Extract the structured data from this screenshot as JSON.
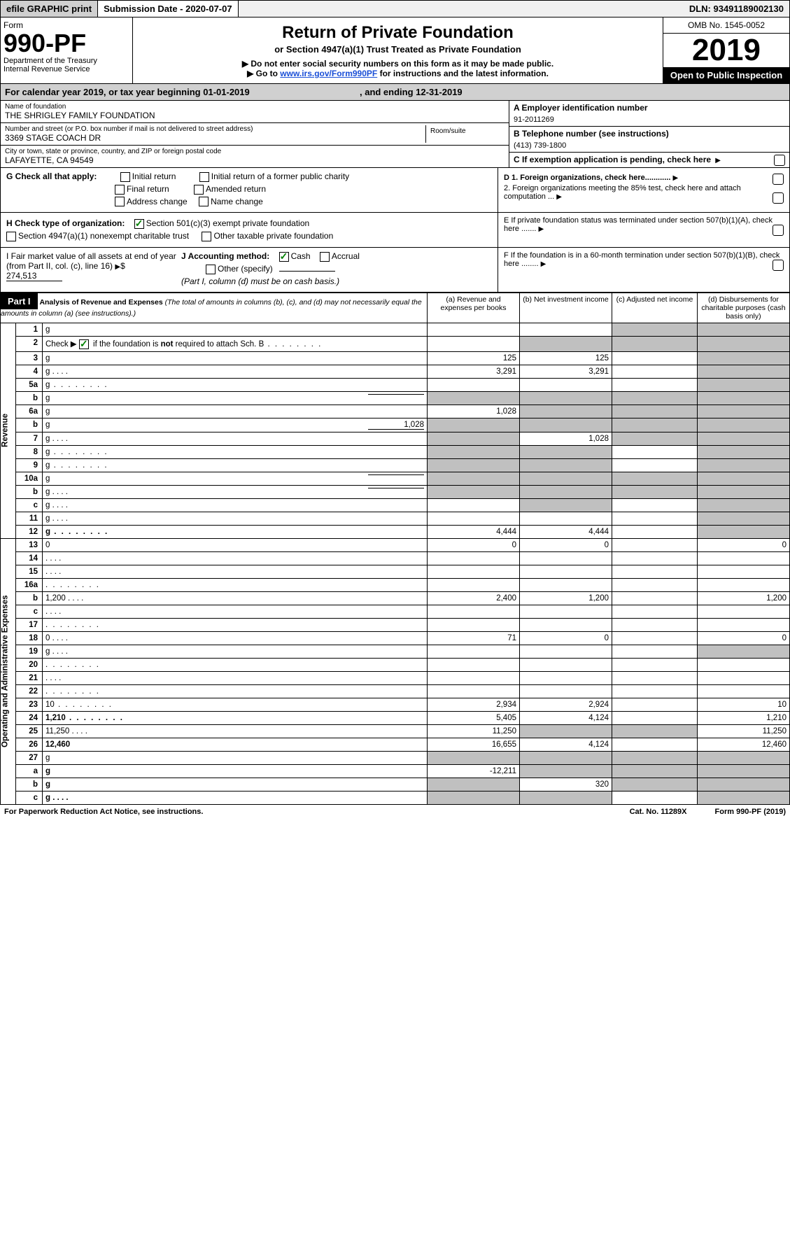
{
  "top": {
    "efile": "efile GRAPHIC print",
    "submission": "Submission Date - 2020-07-07",
    "dln": "DLN: 93491189002130"
  },
  "header": {
    "form_label": "Form",
    "form_number": "990-PF",
    "dept1": "Department of the Treasury",
    "dept2": "Internal Revenue Service",
    "title": "Return of Private Foundation",
    "subtitle": "or Section 4947(a)(1) Trust Treated as Private Foundation",
    "instr1": "▶ Do not enter social security numbers on this form as it may be made public.",
    "instr2_pre": "▶ Go to ",
    "instr2_link": "www.irs.gov/Form990PF",
    "instr2_post": " for instructions and the latest information.",
    "omb": "OMB No. 1545-0052",
    "year": "2019",
    "open": "Open to Public Inspection"
  },
  "calyear": {
    "text_pre": "For calendar year 2019, or tax year beginning ",
    "begin": "01-01-2019",
    "mid": " , and ending ",
    "end": "12-31-2019"
  },
  "identity": {
    "name_label": "Name of foundation",
    "name": "THE SHRIGLEY FAMILY FOUNDATION",
    "addr_label": "Number and street (or P.O. box number if mail is not delivered to street address)",
    "addr": "3369 STAGE COACH DR",
    "room_label": "Room/suite",
    "room": "",
    "city_label": "City or town, state or province, country, and ZIP or foreign postal code",
    "city": "LAFAYETTE, CA  94549",
    "a_label": "A Employer identification number",
    "a_value": "91-2011269",
    "b_label": "B Telephone number (see instructions)",
    "b_value": "(413) 739-1800",
    "c_label": "C If exemption application is pending, check here",
    "d1": "D 1. Foreign organizations, check here............",
    "d2": "2. Foreign organizations meeting the 85% test, check here and attach computation ...",
    "e_label": "E  If private foundation status was terminated under section 507(b)(1)(A), check here .......",
    "f_label": "F  If the foundation is in a 60-month termination under section 507(b)(1)(B), check here ........"
  },
  "g": {
    "label": "G Check all that apply:",
    "initial": "Initial return",
    "initial_former": "Initial return of a former public charity",
    "final": "Final return",
    "amended": "Amended return",
    "addr_change": "Address change",
    "name_change": "Name change"
  },
  "h": {
    "label": "H Check type of organization:",
    "opt1": "Section 501(c)(3) exempt private foundation",
    "opt2": "Section 4947(a)(1) nonexempt charitable trust",
    "opt3": "Other taxable private foundation"
  },
  "i": {
    "label_pre": "I Fair market value of all assets at end of year (from Part II, col. (c), line 16) ",
    "value": "274,513"
  },
  "j": {
    "label": "J Accounting method:",
    "cash": "Cash",
    "accrual": "Accrual",
    "other": "Other (specify)",
    "note": "(Part I, column (d) must be on cash basis.)"
  },
  "part1": {
    "label": "Part I",
    "title": "Analysis of Revenue and Expenses",
    "title_note": " (The total of amounts in columns (b), (c), and (d) may not necessarily equal the amounts in column (a) (see instructions).)",
    "col_a": "(a)  Revenue and expenses per books",
    "col_b": "(b)  Net investment income",
    "col_c": "(c)  Adjusted net income",
    "col_d": "(d)  Disbursements for charitable purposes (cash basis only)",
    "vert_revenue": "Revenue",
    "vert_expenses": "Operating and Administrative Expenses"
  },
  "rows": [
    {
      "n": "1",
      "d": "g",
      "a": "",
      "b": "",
      "c": "g"
    },
    {
      "n": "2",
      "d": "g",
      "dots": true,
      "a": "",
      "b": "g",
      "c": "g",
      "bold_not": true
    },
    {
      "n": "3",
      "d": "g",
      "a": "125",
      "b": "125",
      "c": ""
    },
    {
      "n": "4",
      "d": "g",
      "dots": "short",
      "a": "3,291",
      "b": "3,291",
      "c": ""
    },
    {
      "n": "5a",
      "d": "g",
      "dots": true,
      "a": "",
      "b": "",
      "c": ""
    },
    {
      "n": "b",
      "d": "g",
      "blank": true,
      "a": "g",
      "b": "g",
      "c": "g"
    },
    {
      "n": "6a",
      "d": "g",
      "a": "1,028",
      "b": "g",
      "c": "g"
    },
    {
      "n": "b",
      "d": "g",
      "blank": true,
      "blank_val": "1,028",
      "a": "g",
      "b": "g",
      "c": "g"
    },
    {
      "n": "7",
      "d": "g",
      "dots": "short",
      "a": "g",
      "b": "1,028",
      "c": "g"
    },
    {
      "n": "8",
      "d": "g",
      "dots": true,
      "a": "g",
      "b": "g",
      "c": ""
    },
    {
      "n": "9",
      "d": "g",
      "dots": true,
      "a": "g",
      "b": "g",
      "c": ""
    },
    {
      "n": "10a",
      "d": "g",
      "blank": true,
      "a": "g",
      "b": "g",
      "c": "g"
    },
    {
      "n": "b",
      "d": "g",
      "dots": "short",
      "blank": true,
      "a": "g",
      "b": "g",
      "c": "g"
    },
    {
      "n": "c",
      "d": "g",
      "dots": "short",
      "a": "",
      "b": "g",
      "c": ""
    },
    {
      "n": "11",
      "d": "g",
      "dots": "short",
      "a": "",
      "b": "",
      "c": ""
    },
    {
      "n": "12",
      "d": "g",
      "dots": true,
      "a": "4,444",
      "b": "4,444",
      "c": "",
      "bold": true
    },
    {
      "n": "13",
      "d": "0",
      "a": "0",
      "b": "0",
      "c": ""
    },
    {
      "n": "14",
      "d": "",
      "dots": "short",
      "a": "",
      "b": "",
      "c": ""
    },
    {
      "n": "15",
      "d": "",
      "dots": "short",
      "a": "",
      "b": "",
      "c": ""
    },
    {
      "n": "16a",
      "d": "",
      "dots": true,
      "a": "",
      "b": "",
      "c": ""
    },
    {
      "n": "b",
      "d": "1,200",
      "dots": "short",
      "a": "2,400",
      "b": "1,200",
      "c": ""
    },
    {
      "n": "c",
      "d": "",
      "dots": "short",
      "a": "",
      "b": "",
      "c": ""
    },
    {
      "n": "17",
      "d": "",
      "dots": true,
      "a": "",
      "b": "",
      "c": ""
    },
    {
      "n": "18",
      "d": "0",
      "dots": "short",
      "a": "71",
      "b": "0",
      "c": ""
    },
    {
      "n": "19",
      "d": "g",
      "dots": "short",
      "a": "",
      "b": "",
      "c": ""
    },
    {
      "n": "20",
      "d": "",
      "dots": true,
      "a": "",
      "b": "",
      "c": ""
    },
    {
      "n": "21",
      "d": "",
      "dots": "short",
      "a": "",
      "b": "",
      "c": ""
    },
    {
      "n": "22",
      "d": "",
      "dots": true,
      "a": "",
      "b": "",
      "c": ""
    },
    {
      "n": "23",
      "d": "10",
      "dots": true,
      "a": "2,934",
      "b": "2,924",
      "c": ""
    },
    {
      "n": "24",
      "d": "1,210",
      "dots": true,
      "a": "5,405",
      "b": "4,124",
      "c": "",
      "bold": true
    },
    {
      "n": "25",
      "d": "11,250",
      "dots": "short",
      "a": "11,250",
      "b": "g",
      "c": "g"
    },
    {
      "n": "26",
      "d": "12,460",
      "a": "16,655",
      "b": "4,124",
      "c": "",
      "bold": true
    },
    {
      "n": "27",
      "d": "g",
      "a": "g",
      "b": "g",
      "c": "g"
    },
    {
      "n": "a",
      "d": "g",
      "a": "-12,211",
      "b": "g",
      "c": "g",
      "bold": true
    },
    {
      "n": "b",
      "d": "g",
      "a": "g",
      "b": "320",
      "c": "g",
      "bold": true
    },
    {
      "n": "c",
      "d": "g",
      "dots": "short",
      "a": "g",
      "b": "g",
      "c": "",
      "bold": true
    }
  ],
  "footer": {
    "left": "For Paperwork Reduction Act Notice, see instructions.",
    "mid": "Cat. No. 11289X",
    "right": "Form 990-PF (2019)"
  }
}
